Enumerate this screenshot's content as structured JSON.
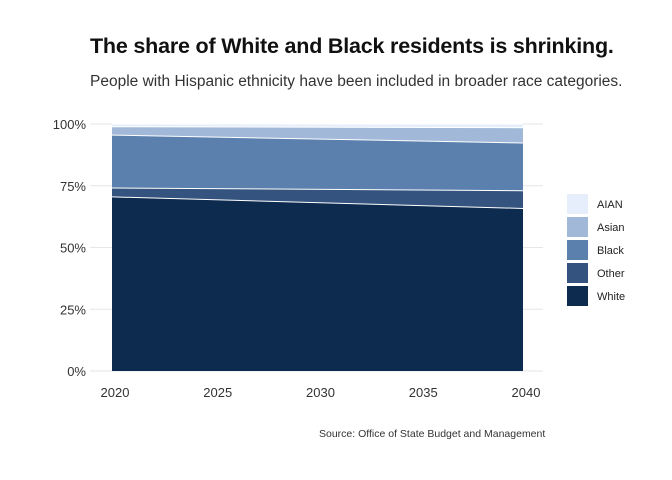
{
  "chart_data": {
    "type": "area",
    "stacked": true,
    "normalized": true,
    "title": "The share of White and Black residents is shrinking.",
    "subtitle": "People with Hispanic ethnicity have been included in broader race categories.",
    "caption": "Source: Office of State Budget and Management",
    "xlabel": "",
    "ylabel": "",
    "x": [
      2020,
      2040
    ],
    "xticks": [
      "2020",
      "2025",
      "2030",
      "2035",
      "2040"
    ],
    "ylim": [
      0,
      100
    ],
    "yticks": [
      "0%",
      "25%",
      "50%",
      "75%",
      "100%"
    ],
    "grid": true,
    "legend_position": "right",
    "series": [
      {
        "name": "White",
        "values": [
          70.5,
          65.8
        ],
        "color": "#0d2a4f"
      },
      {
        "name": "Other",
        "values": [
          3.6,
          7.2
        ],
        "color": "#34547f"
      },
      {
        "name": "Black",
        "values": [
          21.4,
          19.3
        ],
        "color": "#5b80ae"
      },
      {
        "name": "Asian",
        "values": [
          3.4,
          6.2
        ],
        "color": "#a1b8d8"
      },
      {
        "name": "AIAN",
        "values": [
          1.1,
          1.5
        ],
        "color": "#e6eefb"
      }
    ],
    "legend_order": [
      "AIAN",
      "Asian",
      "Black",
      "Other",
      "White"
    ]
  }
}
